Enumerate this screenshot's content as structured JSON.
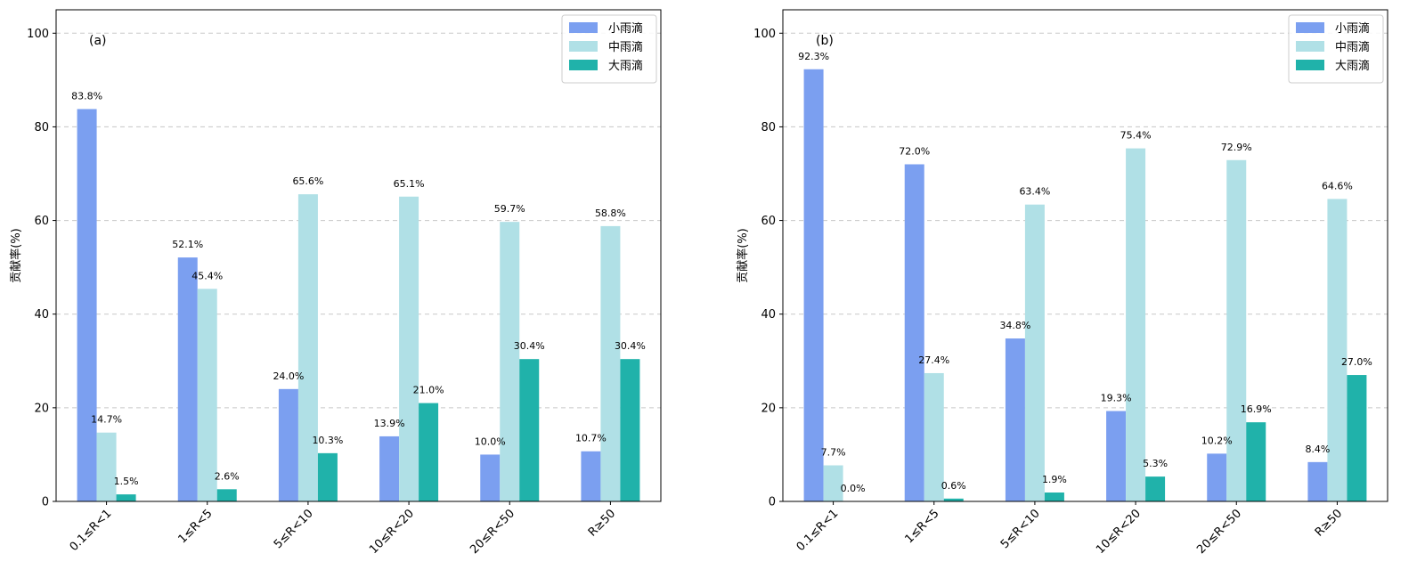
{
  "chart_data": [
    {
      "type": "bar",
      "panel_label": "(a)",
      "ylabel": "贡献率(%)",
      "ylim": [
        0,
        105
      ],
      "yticks": [
        "0",
        "20",
        "40",
        "60",
        "80",
        "100"
      ],
      "grid": "y-dashed",
      "legend_position": "top-right",
      "categories": [
        "0.1≤R<1",
        "1≤R<5",
        "5≤R<10",
        "10≤R<20",
        "20≤R<50",
        "R≥50"
      ],
      "series": [
        {
          "name": "小雨滴",
          "color": "#7b9ff0",
          "values": [
            83.8,
            52.1,
            24.0,
            13.9,
            10.0,
            10.7
          ],
          "labels": [
            "83.8%",
            "52.1%",
            "24.0%",
            "13.9%",
            "10.0%",
            "10.7%"
          ]
        },
        {
          "name": "中雨滴",
          "color": "#b0e0e6",
          "values": [
            14.7,
            45.4,
            65.6,
            65.1,
            59.7,
            58.8
          ],
          "labels": [
            "14.7%",
            "45.4%",
            "65.6%",
            "65.1%",
            "59.7%",
            "58.8%"
          ]
        },
        {
          "name": "大雨滴",
          "color": "#20b2aa",
          "values": [
            1.5,
            2.6,
            10.3,
            21.0,
            30.4,
            30.4
          ],
          "labels": [
            "1.5%",
            "2.6%",
            "10.3%",
            "21.0%",
            "30.4%",
            "30.4%"
          ]
        }
      ]
    },
    {
      "type": "bar",
      "panel_label": "(b)",
      "ylabel": "贡献率(%)",
      "ylim": [
        0,
        105
      ],
      "yticks": [
        "0",
        "20",
        "40",
        "60",
        "80",
        "100"
      ],
      "grid": "y-dashed",
      "legend_position": "top-right",
      "categories": [
        "0.1≤R<1",
        "1≤R<5",
        "5≤R<10",
        "10≤R<20",
        "20≤R<50",
        "R≥50"
      ],
      "series": [
        {
          "name": "小雨滴",
          "color": "#7b9ff0",
          "values": [
            92.3,
            72.0,
            34.8,
            19.3,
            10.2,
            8.4
          ],
          "labels": [
            "92.3%",
            "72.0%",
            "34.8%",
            "19.3%",
            "10.2%",
            "8.4%"
          ]
        },
        {
          "name": "中雨滴",
          "color": "#b0e0e6",
          "values": [
            7.7,
            27.4,
            63.4,
            75.4,
            72.9,
            64.6
          ],
          "labels": [
            "7.7%",
            "27.4%",
            "63.4%",
            "75.4%",
            "72.9%",
            "64.6%"
          ]
        },
        {
          "name": "大雨滴",
          "color": "#20b2aa",
          "values": [
            0.0,
            0.6,
            1.9,
            5.3,
            16.9,
            27.0
          ],
          "labels": [
            "0.0%",
            "0.6%",
            "1.9%",
            "5.3%",
            "16.9%",
            "27.0%"
          ]
        }
      ]
    }
  ]
}
